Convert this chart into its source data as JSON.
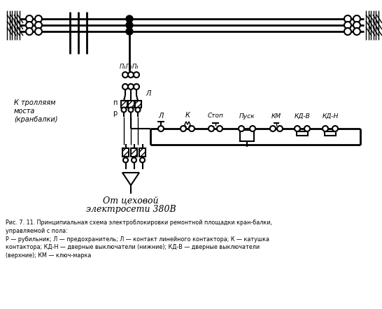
{
  "bg_color": "#ffffff",
  "line_color": "#000000",
  "fig_width": 5.46,
  "fig_height": 4.42,
  "dpi": 100,
  "caption": "Рис. 7. 11. Принципиальная схема электроблокировки ремонтной площадки кран-балки,\nуправляемой с пола:\nР — рубильник; Л — предохранитель; Л — контакт линейного контактора; К — катушка\nконтактора; КД-Н — дверные выключатели (нижние); КД-В — дверные выключатели\n(верхние); КМ — ключ-марка",
  "label_trolley": "К тролляем\nмоста\n(кранбалки)",
  "label_source": "От цеховой\nэлектросети 380В",
  "labels_top": [
    "П₁",
    "П₂",
    "П₃"
  ],
  "labels_ctrl": [
    "Л",
    "К",
    "Стоп",
    "Пуск",
    "КМ",
    "КД-В",
    "КД-Н"
  ],
  "label_p": "п",
  "label_r": "р"
}
